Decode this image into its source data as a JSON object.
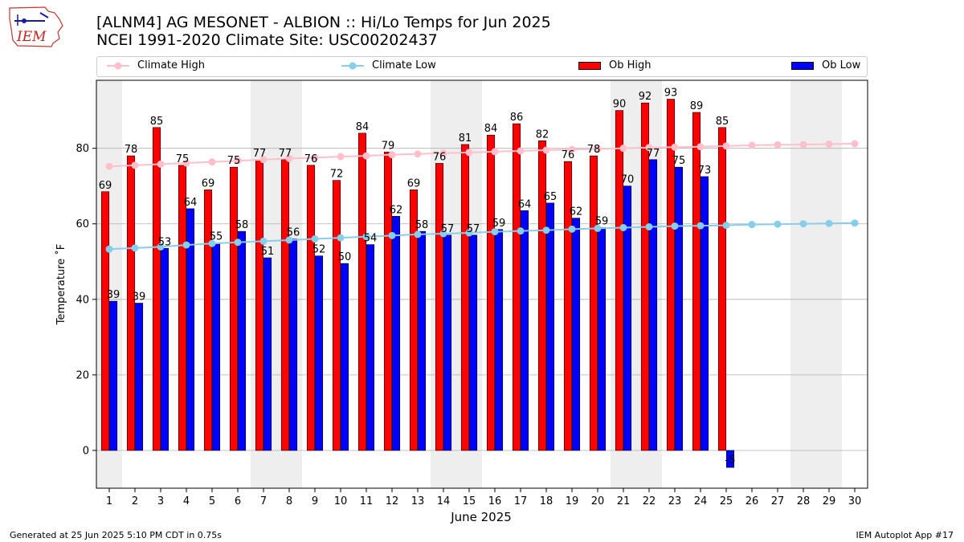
{
  "header": {
    "title_line1": "[ALNM4] AG MESONET - ALBION :: Hi/Lo Temps for Jun 2025",
    "title_line2": "NCEI 1991-2020 Climate Site: USC00202437",
    "logo_text": "IEM"
  },
  "legend": {
    "climate_high": "Climate High",
    "climate_low": "Climate Low",
    "ob_high": "Ob High",
    "ob_low": "Ob Low"
  },
  "colors": {
    "climate_high": "#ffc0cb",
    "climate_low": "#87ceeb",
    "ob_high": "#ff0000",
    "ob_low": "#0000ff",
    "weekend_shade": "#eeeeee",
    "grid": "#b0b0b0"
  },
  "chart_data": {
    "type": "bar",
    "xlabel": "June 2025",
    "ylabel": "Temperature ˚F",
    "ylim": [
      -10,
      98
    ],
    "yticks": [
      0,
      20,
      40,
      60,
      80
    ],
    "grid": "horizontal",
    "legend_position": "top",
    "categories": [
      "1",
      "2",
      "3",
      "4",
      "5",
      "6",
      "7",
      "8",
      "9",
      "10",
      "11",
      "12",
      "13",
      "14",
      "15",
      "16",
      "17",
      "18",
      "19",
      "20",
      "21",
      "22",
      "23",
      "24",
      "25",
      "26",
      "27",
      "28",
      "29",
      "30"
    ],
    "shaded_days": [
      1,
      7,
      8,
      14,
      15,
      21,
      22,
      28,
      29
    ],
    "series": [
      {
        "name": "Ob High",
        "kind": "bar",
        "values": [
          68.5,
          78,
          85.5,
          75.5,
          69,
          75,
          77,
          77,
          75.5,
          71.5,
          84,
          79,
          69,
          76,
          81,
          83.5,
          86.5,
          82,
          76.5,
          78,
          90,
          92,
          93,
          89.5,
          85.5,
          null,
          null,
          null,
          null,
          null
        ],
        "labels": [
          "69",
          "78",
          "85",
          "75",
          "69",
          "75",
          "77",
          "77",
          "76",
          "72",
          "84",
          "79",
          "69",
          "76",
          "81",
          "84",
          "86",
          "82",
          "76",
          "78",
          "90",
          "92",
          "93",
          "89",
          "85",
          "",
          "",
          "",
          "",
          ""
        ]
      },
      {
        "name": "Ob Low",
        "kind": "bar",
        "values": [
          39.5,
          39,
          53.5,
          64,
          55,
          58,
          51,
          56,
          51.5,
          49.5,
          54.5,
          62,
          58,
          57,
          57,
          58.5,
          63.5,
          65.5,
          61.5,
          59,
          70,
          77,
          75,
          72.5,
          -4.5,
          null,
          null,
          null,
          null,
          null
        ],
        "labels": [
          "39",
          "39",
          "53",
          "64",
          "55",
          "58",
          "51",
          "56",
          "52",
          "50",
          "54",
          "62",
          "58",
          "57",
          "57",
          "59",
          "64",
          "65",
          "62",
          "59",
          "70",
          "77",
          "75",
          "73",
          "-5",
          "",
          "",
          "",
          "",
          ""
        ]
      },
      {
        "name": "Climate High",
        "kind": "line",
        "values": [
          75.2,
          75.5,
          75.8,
          76.1,
          76.4,
          76.7,
          77.0,
          77.3,
          77.5,
          77.8,
          78.0,
          78.3,
          78.5,
          78.7,
          78.9,
          79.1,
          79.3,
          79.5,
          79.7,
          79.8,
          80.0,
          80.2,
          80.3,
          80.4,
          80.6,
          80.8,
          80.9,
          81.0,
          81.1,
          81.2
        ]
      },
      {
        "name": "Climate Low",
        "kind": "line",
        "values": [
          53.3,
          53.6,
          53.9,
          54.4,
          54.8,
          55.1,
          55.4,
          55.7,
          56.0,
          56.3,
          56.6,
          56.9,
          57.2,
          57.4,
          57.6,
          57.9,
          58.1,
          58.3,
          58.6,
          58.8,
          59.0,
          59.2,
          59.4,
          59.5,
          59.6,
          59.8,
          59.9,
          60.0,
          60.1,
          60.2
        ]
      }
    ]
  },
  "footer": {
    "generated": "Generated at 25 Jun 2025 5:10 PM CDT in 0.75s",
    "app": "IEM Autoplot App #17"
  }
}
